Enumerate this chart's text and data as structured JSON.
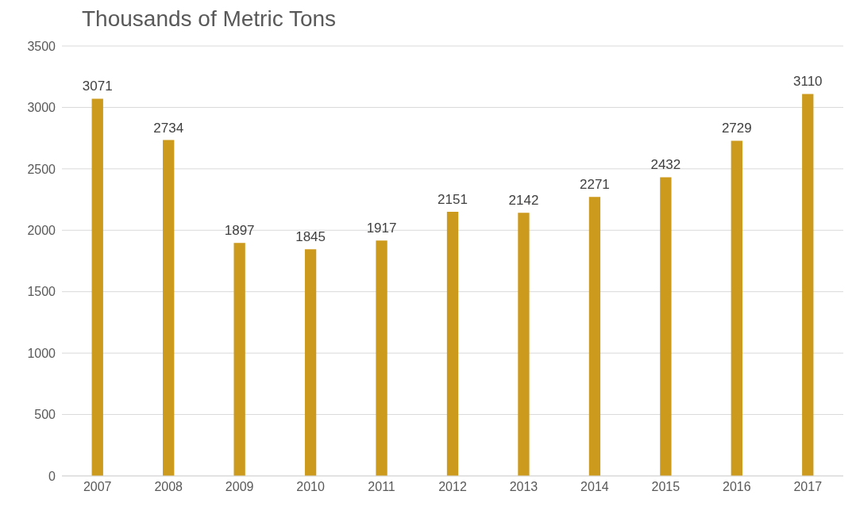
{
  "chart_data": {
    "type": "bar",
    "title": "Thousands of Metric Tons",
    "categories": [
      "2007",
      "2008",
      "2009",
      "2010",
      "2011",
      "2012",
      "2013",
      "2014",
      "2015",
      "2016",
      "2017"
    ],
    "values": [
      3071,
      2734,
      1897,
      1845,
      1917,
      2151,
      2142,
      2271,
      2432,
      2729,
      3110
    ],
    "color": "#cc9a1c",
    "ylim": [
      0,
      3500
    ],
    "yticks": [
      0,
      500,
      1000,
      1500,
      2000,
      2500,
      3000,
      3500
    ],
    "grid": "y",
    "data_labels": true
  }
}
